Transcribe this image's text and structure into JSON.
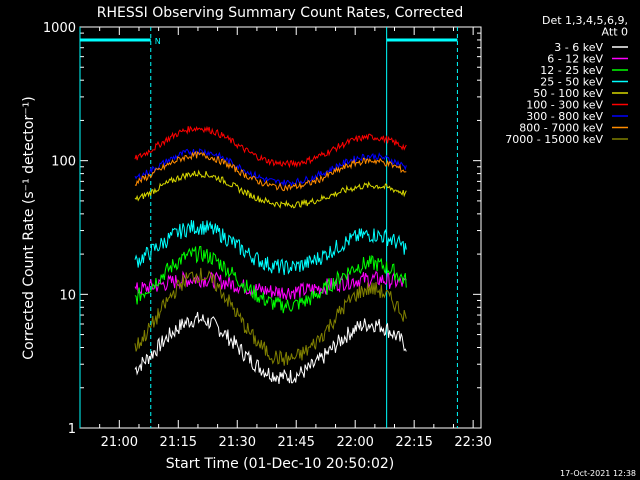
{
  "chart_data": {
    "type": "line",
    "title": "RHESSI Observing Summary Count Rates, Corrected",
    "xlabel": "Start Time (01-Dec-10 20:50:02)",
    "ylabel": "Corrected Count Rate (s⁻¹ detector⁻¹)",
    "yscale": "log",
    "ylim": [
      1,
      1000
    ],
    "xlim": [
      "20:50",
      "22:32"
    ],
    "x_ticks": [
      "21:00",
      "21:15",
      "21:30",
      "21:45",
      "22:00",
      "22:15",
      "22:30"
    ],
    "y_ticks": [
      "1",
      "10",
      "100",
      "1000"
    ],
    "legend_header": [
      "Det 1,3,4,5,6,9,",
      "Att 0"
    ],
    "legend_position": "right",
    "series": [
      {
        "name": "3 - 6 keV",
        "color": "#ffffff",
        "start": "21:04",
        "end": "22:13",
        "min": 2.0,
        "peak1": 6.5,
        "peak2": 6.0
      },
      {
        "name": "6 - 12 keV",
        "color": "#ff00ff",
        "start": "21:04",
        "end": "22:13",
        "min": 10.0,
        "peak1": 13.0,
        "peak2": 13.0
      },
      {
        "name": "12 - 25 keV",
        "color": "#00ff00",
        "start": "21:04",
        "end": "22:13",
        "min": 7.0,
        "peak1": 20.0,
        "peak2": 17.0
      },
      {
        "name": "25 - 50 keV",
        "color": "#00ffff",
        "start": "21:04",
        "end": "22:13",
        "min": 14.0,
        "peak1": 32.0,
        "peak2": 28.0
      },
      {
        "name": "50 - 100 keV",
        "color": "#d8d800",
        "start": "21:04",
        "end": "22:13",
        "min": 43.0,
        "peak1": 80.0,
        "peak2": 65.0
      },
      {
        "name": "100 - 300 keV",
        "color": "#ff0000",
        "start": "21:04",
        "end": "22:13",
        "min": 85.0,
        "peak1": 175.0,
        "peak2": 150.0
      },
      {
        "name": "300 - 800 keV",
        "color": "#0000ff",
        "start": "21:04",
        "end": "22:13",
        "min": 62.0,
        "peak1": 118.0,
        "peak2": 108.0
      },
      {
        "name": "800 - 7000 keV",
        "color": "#ff8c00",
        "start": "21:04",
        "end": "22:13",
        "min": 57.0,
        "peak1": 110.0,
        "peak2": 100.0
      },
      {
        "name": "7000 - 15000 keV",
        "color": "#808000",
        "start": "21:04",
        "end": "22:13",
        "min": 2.5,
        "peak1": 14.0,
        "peak2": 11.0
      }
    ],
    "flags": [
      {
        "label": "",
        "start": "20:50",
        "end": "21:08",
        "level": 800
      },
      {
        "label": "",
        "start": "22:08",
        "end": "22:26",
        "level": 800
      }
    ],
    "flag_marker": "N",
    "footer_text": "17-Oct-2021 12:38"
  }
}
